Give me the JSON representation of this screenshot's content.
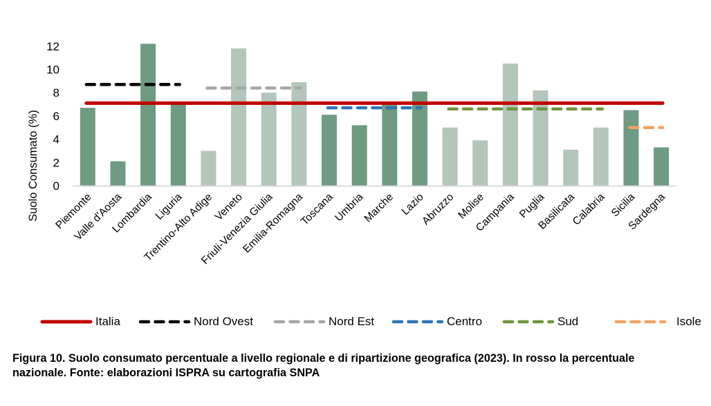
{
  "chart_data": {
    "type": "bar",
    "title": "",
    "xlabel": "",
    "ylabel": "Suolo Consumato (%)",
    "ylim": [
      0,
      12
    ],
    "yticks": [
      0,
      2,
      4,
      6,
      8,
      10,
      12
    ],
    "grid": false,
    "legend_position": "bottom",
    "categories": [
      "Piemonte",
      "Valle d'Aosta",
      "Lombardia",
      "Liguria",
      "Trentino-Alto Adige",
      "Veneto",
      "Friuli-Venezia Giulia",
      "Emilia-Romagna",
      "Toscana",
      "Umbria",
      "Marche",
      "Lazio",
      "Abruzzo",
      "Molise",
      "Campania",
      "Puglia",
      "Basilicata",
      "Calabria",
      "Sicilia",
      "Sardegna"
    ],
    "values": [
      6.7,
      2.1,
      12.2,
      7.2,
      3.0,
      11.8,
      8.0,
      8.9,
      6.1,
      5.2,
      7.0,
      8.1,
      5.0,
      3.9,
      10.5,
      8.2,
      3.1,
      5.0,
      6.5,
      3.3
    ],
    "bar_shade": [
      "dark",
      "dark",
      "dark",
      "dark",
      "light",
      "light",
      "light",
      "light",
      "dark",
      "dark",
      "dark",
      "dark",
      "light",
      "light",
      "light",
      "light",
      "light",
      "light",
      "dark",
      "dark"
    ],
    "colors": {
      "dark": "#6e9b82",
      "light": "#b2c6ba",
      "axis": "#d9d9d9"
    },
    "reference_lines": [
      {
        "name": "Italia",
        "value": 7.1,
        "from": "Piemonte",
        "to": "Sardegna",
        "color": "#c00000",
        "style": "solid"
      },
      {
        "name": "Nord Ovest",
        "value": 8.7,
        "from": "Piemonte",
        "to": "Liguria",
        "color": "#000000",
        "style": "dashed"
      },
      {
        "name": "Nord Est",
        "value": 8.4,
        "from": "Trentino-Alto Adige",
        "to": "Emilia-Romagna",
        "color": "#a6a6a6",
        "style": "dashed"
      },
      {
        "name": "Centro",
        "value": 6.7,
        "from": "Toscana",
        "to": "Lazio",
        "color": "#2e75b6",
        "style": "dashed"
      },
      {
        "name": "Sud",
        "value": 6.6,
        "from": "Abruzzo",
        "to": "Calabria",
        "color": "#70963a",
        "style": "dashed"
      },
      {
        "name": "Isole",
        "value": 5.0,
        "from": "Sicilia",
        "to": "Sardegna",
        "color": "#f4a261",
        "style": "dashed"
      }
    ]
  },
  "legend": [
    {
      "label": "Italia",
      "color": "#c00000",
      "style": "solid"
    },
    {
      "label": "Nord Ovest",
      "color": "#000000",
      "style": "dashed"
    },
    {
      "label": "Nord Est",
      "color": "#a6a6a6",
      "style": "dashed"
    },
    {
      "label": "Centro",
      "color": "#2e75b6",
      "style": "dashed"
    },
    {
      "label": "Sud",
      "color": "#70963a",
      "style": "dashed"
    },
    {
      "label": "Isole",
      "color": "#f4a261",
      "style": "dashed"
    }
  ],
  "caption": {
    "line1": "Figura 10. Suolo consumato percentuale a livello regionale e di ripartizione geografica (2023). In rosso la percentuale",
    "line2": "nazionale. Fonte: elaborazioni ISPRA su cartografia SNPA"
  }
}
